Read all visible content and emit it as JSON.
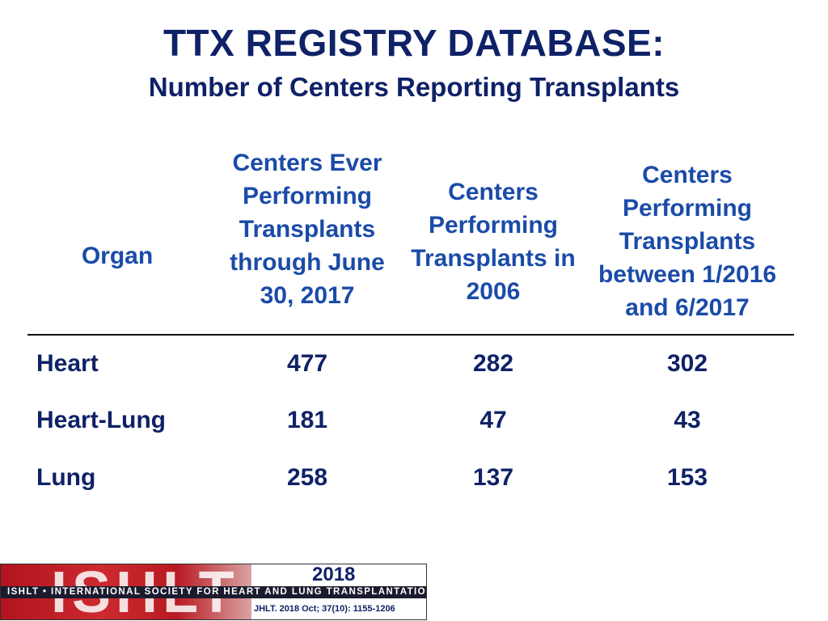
{
  "slide": {
    "title": "TTX REGISTRY DATABASE:",
    "subtitle": "Number of Centers Reporting Transplants"
  },
  "table": {
    "headers": {
      "organ": "Organ",
      "ever": "Centers Ever Performing Transplants through June 30, 2017",
      "y2006": "Centers Performing Transplants in 2006",
      "recent": "Centers Performing Transplants between 1/2016 and 6/2017"
    },
    "rows": [
      {
        "organ": "Heart",
        "ever": "477",
        "y2006": "282",
        "recent": "302"
      },
      {
        "organ": "Heart-Lung",
        "ever": "181",
        "y2006": "47",
        "recent": "43"
      },
      {
        "organ": "Lung",
        "ever": "258",
        "y2006": "137",
        "recent": "153"
      }
    ]
  },
  "footer": {
    "logo_text": "ISHLT",
    "tagline": "ISHLT • INTERNATIONAL SOCIETY FOR HEART AND LUNG TRANSPLANTATION",
    "year": "2018",
    "citation": "JHLT. 2018 Oct; 37(10): 1155-1206"
  },
  "colors": {
    "title": "#0f2167",
    "header": "#1a4ba8",
    "logo_red": "#b0141c"
  }
}
